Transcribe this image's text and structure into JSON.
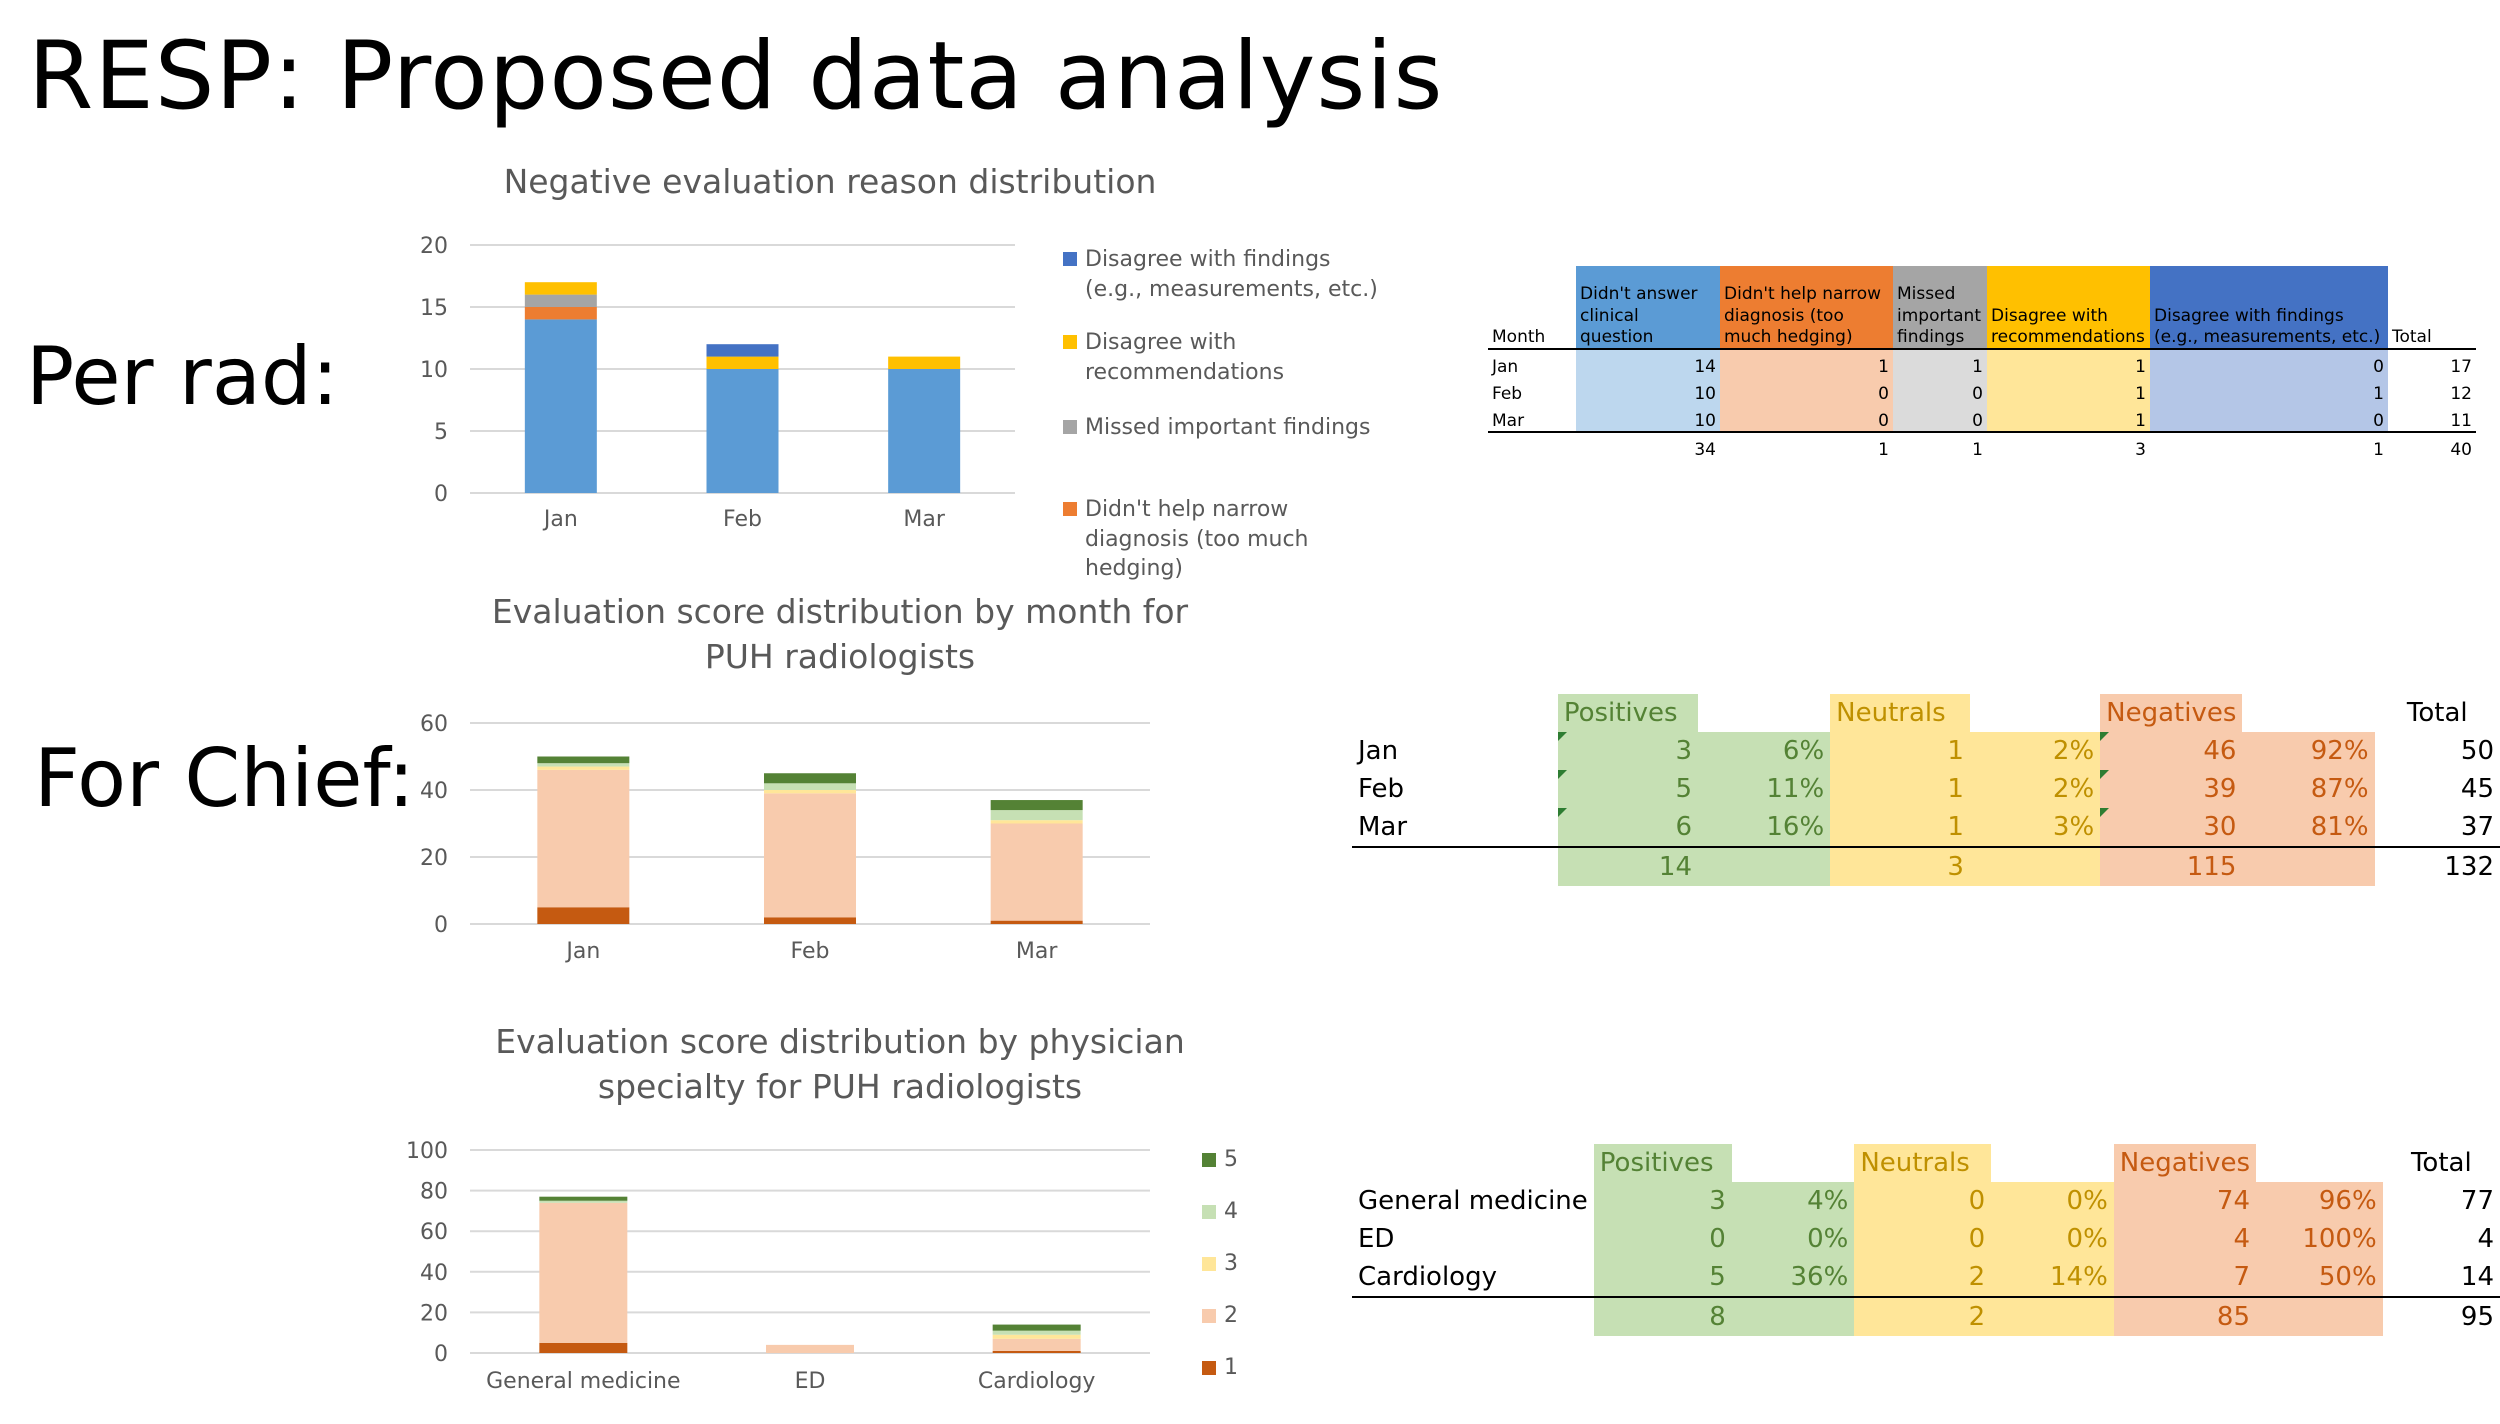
{
  "slide": {
    "title": "RESP: Proposed data analysis",
    "per_rad_label": "Per rad:",
    "for_chief_label": "For Chief:"
  },
  "colors": {
    "disagree_findings": "#4472c4",
    "disagree_recs": "#ffc000",
    "missed": "#a5a5a5",
    "didnt_help": "#ed7d31",
    "didnt_answer": "#5b9bd5",
    "score5": "#548235",
    "score4": "#c6e0b4",
    "score3": "#ffe699",
    "score2": "#f8cbad",
    "score1": "#c55a11"
  },
  "chart_data": [
    {
      "type": "bar",
      "stacked": true,
      "title": "Negative evaluation reason distribution",
      "categories": [
        "Jan",
        "Feb",
        "Mar"
      ],
      "ylim": [
        0,
        20
      ],
      "yticks": [
        "0",
        "5",
        "10",
        "15",
        "20"
      ],
      "grid": true,
      "legend_position": "right",
      "series": [
        {
          "name": "Didn't answer clinical question",
          "values": [
            14,
            10,
            10
          ],
          "legend": false
        },
        {
          "name": "Didn't help narrow diagnosis (too much hedging)",
          "values": [
            1,
            0,
            0
          ],
          "legend": true
        },
        {
          "name": "Missed important findings",
          "values": [
            1,
            0,
            0
          ],
          "legend": true
        },
        {
          "name": "Disagree with recommendations",
          "values": [
            1,
            1,
            1
          ],
          "legend": true
        },
        {
          "name": "Disagree with findings (e.g., measurements, etc.)",
          "values": [
            0,
            1,
            0
          ],
          "legend": true
        }
      ]
    },
    {
      "type": "bar",
      "stacked": true,
      "title": "Evaluation score distribution by month for PUH radiologists",
      "categories": [
        "Jan",
        "Feb",
        "Mar"
      ],
      "ylim": [
        0,
        60
      ],
      "yticks": [
        "0",
        "20",
        "40",
        "60"
      ],
      "grid": true,
      "legend_position": "right",
      "series": [
        {
          "name": "1",
          "values": [
            5,
            2,
            1
          ]
        },
        {
          "name": "2",
          "values": [
            41,
            37,
            29
          ]
        },
        {
          "name": "3",
          "values": [
            1,
            1,
            1
          ]
        },
        {
          "name": "4",
          "values": [
            1,
            2,
            3
          ]
        },
        {
          "name": "5",
          "values": [
            2,
            3,
            3
          ]
        }
      ]
    },
    {
      "type": "bar",
      "stacked": true,
      "title": "Evaluation score distribution by physician specialty for PUH radiologists",
      "categories": [
        "General medicine",
        "ED",
        "Cardiology"
      ],
      "ylim": [
        0,
        100
      ],
      "yticks": [
        "0",
        "20",
        "40",
        "60",
        "80",
        "100"
      ],
      "grid": true,
      "legend_position": "right",
      "series": [
        {
          "name": "1",
          "values": [
            5,
            0,
            1
          ]
        },
        {
          "name": "2",
          "values": [
            69,
            4,
            6
          ]
        },
        {
          "name": "3",
          "values": [
            0,
            0,
            2
          ]
        },
        {
          "name": "4",
          "values": [
            1,
            0,
            2
          ]
        },
        {
          "name": "5",
          "values": [
            2,
            0,
            3
          ]
        }
      ]
    }
  ],
  "reason_table": {
    "headers": [
      "Month",
      "Didn't answer clinical question",
      "Didn't help narrow diagnosis (too much hedging)",
      "Missed important findings",
      "Disagree with recommendations",
      "Disagree with findings (e.g., measurements, etc.)",
      "Total"
    ],
    "rows": [
      [
        "Jan",
        "14",
        "1",
        "1",
        "1",
        "0",
        "17"
      ],
      [
        "Feb",
        "10",
        "0",
        "0",
        "1",
        "1",
        "12"
      ],
      [
        "Mar",
        "10",
        "0",
        "0",
        "1",
        "0",
        "11"
      ]
    ],
    "totals": [
      "",
      "34",
      "1",
      "1",
      "3",
      "1",
      "40"
    ]
  },
  "month_table": {
    "headers": {
      "positives": "Positives",
      "neutrals": "Neutrals",
      "negatives": "Negatives",
      "total": "Total"
    },
    "rows": [
      {
        "label": "Jan",
        "pos": "3",
        "pos_pct": "6%",
        "neu": "1",
        "neu_pct": "2%",
        "neg": "46",
        "neg_pct": "92%",
        "total": "50"
      },
      {
        "label": "Feb",
        "pos": "5",
        "pos_pct": "11%",
        "neu": "1",
        "neu_pct": "2%",
        "neg": "39",
        "neg_pct": "87%",
        "total": "45"
      },
      {
        "label": "Mar",
        "pos": "6",
        "pos_pct": "16%",
        "neu": "1",
        "neu_pct": "3%",
        "neg": "30",
        "neg_pct": "81%",
        "total": "37"
      }
    ],
    "totals": {
      "pos": "14",
      "neu": "3",
      "neg": "115",
      "total": "132"
    }
  },
  "specialty_table": {
    "headers": {
      "positives": "Positives",
      "neutrals": "Neutrals",
      "negatives": "Negatives",
      "total": "Total"
    },
    "rows": [
      {
        "label": "General medicine",
        "pos": "3",
        "pos_pct": "4%",
        "neu": "0",
        "neu_pct": "0%",
        "neg": "74",
        "neg_pct": "96%",
        "total": "77"
      },
      {
        "label": "ED",
        "pos": "0",
        "pos_pct": "0%",
        "neu": "0",
        "neu_pct": "0%",
        "neg": "4",
        "neg_pct": "100%",
        "total": "4"
      },
      {
        "label": "Cardiology",
        "pos": "5",
        "pos_pct": "36%",
        "neu": "2",
        "neu_pct": "14%",
        "neg": "7",
        "neg_pct": "50%",
        "total": "14"
      }
    ],
    "totals": {
      "pos": "8",
      "neu": "2",
      "neg": "85",
      "total": "95"
    }
  }
}
